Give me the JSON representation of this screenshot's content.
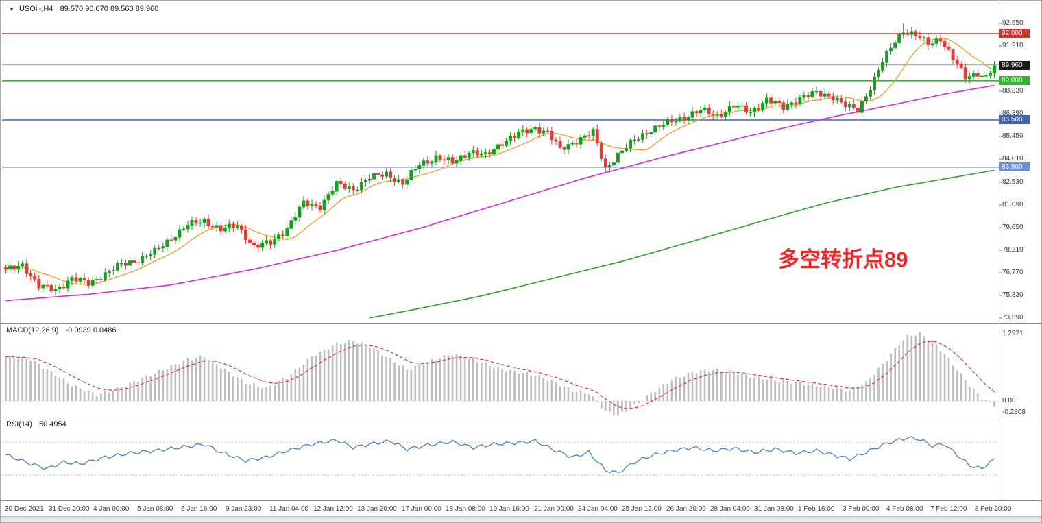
{
  "chart_data": {
    "type": "candlestick",
    "title": "USOil-,H4",
    "ohlc_text": "89.570 90.070 89.560 89.960",
    "current_close": 89.96,
    "annotation": "多空转折点89",
    "candle_count": 240,
    "colors": {
      "up": "#0fa317",
      "down": "#e03c3c",
      "ma_fast": "#f0a030",
      "ma_mid": "#d929d9",
      "ma_slow": "#2f9e2f",
      "macd_hist": "#bdbdbd",
      "macd_signal": "#d03636",
      "rsi_line": "#4a7ebb"
    },
    "close_anchors": [
      [
        0,
        76.9
      ],
      [
        4,
        77.3
      ],
      [
        8,
        75.9
      ],
      [
        12,
        75.7
      ],
      [
        16,
        76.4
      ],
      [
        20,
        76.1
      ],
      [
        24,
        76.7
      ],
      [
        28,
        77.3
      ],
      [
        32,
        77.6
      ],
      [
        36,
        78.1
      ],
      [
        40,
        79.0
      ],
      [
        44,
        79.8
      ],
      [
        48,
        80.1
      ],
      [
        52,
        79.5
      ],
      [
        56,
        79.8
      ],
      [
        60,
        78.4
      ],
      [
        64,
        78.7
      ],
      [
        68,
        79.6
      ],
      [
        72,
        81.2
      ],
      [
        76,
        81.0
      ],
      [
        80,
        82.4
      ],
      [
        84,
        82.1
      ],
      [
        88,
        82.8
      ],
      [
        92,
        83.1
      ],
      [
        96,
        82.4
      ],
      [
        100,
        83.7
      ],
      [
        104,
        84.1
      ],
      [
        108,
        83.8
      ],
      [
        112,
        84.5
      ],
      [
        116,
        84.2
      ],
      [
        120,
        85.1
      ],
      [
        124,
        85.6
      ],
      [
        128,
        86.0
      ],
      [
        131,
        85.7
      ],
      [
        134,
        84.6
      ],
      [
        138,
        85.2
      ],
      [
        142,
        85.7
      ],
      [
        145,
        83.4
      ],
      [
        148,
        84.3
      ],
      [
        152,
        85.2
      ],
      [
        156,
        85.9
      ],
      [
        160,
        86.3
      ],
      [
        164,
        86.7
      ],
      [
        168,
        87.1
      ],
      [
        172,
        86.8
      ],
      [
        176,
        87.4
      ],
      [
        180,
        87.0
      ],
      [
        184,
        87.8
      ],
      [
        188,
        87.3
      ],
      [
        192,
        87.9
      ],
      [
        196,
        88.2
      ],
      [
        200,
        88.0
      ],
      [
        203,
        87.4
      ],
      [
        206,
        87.1
      ],
      [
        209,
        88.6
      ],
      [
        212,
        90.2
      ],
      [
        215,
        91.5
      ],
      [
        217,
        92.2
      ],
      [
        220,
        91.9
      ],
      [
        223,
        91.3
      ],
      [
        226,
        91.7
      ],
      [
        229,
        90.4
      ],
      [
        232,
        89.2
      ],
      [
        235,
        89.5
      ],
      [
        237,
        89.2
      ],
      [
        239,
        89.96
      ]
    ],
    "peak": {
      "index": 217,
      "high": 92.65
    },
    "horizontal_lines": [
      {
        "price": 92.0,
        "color": "#cc3333",
        "width": 1.4
      },
      {
        "price": 90.0,
        "color": "#9a9a9a",
        "width": 1.0
      },
      {
        "price": 89.0,
        "color": "#2db82d",
        "width": 1.8
      },
      {
        "price": 86.5,
        "color": "#3f63b5",
        "width": 1.5
      },
      {
        "price": 83.5,
        "color": "#5f7fd0",
        "width": 1.5
      }
    ],
    "price_axis": {
      "ticks": [
        "92.650",
        "91.210",
        "89.770",
        "88.330",
        "86.890",
        "85.450",
        "84.010",
        "82.530",
        "81.090",
        "79.650",
        "78.210",
        "76.770",
        "75.330",
        "73.890"
      ],
      "badges": [
        {
          "label": "92.000",
          "price": 92.0,
          "bg": "#cc3333"
        },
        {
          "label": "89.960",
          "price": 89.96,
          "bg": "#1a1a1a"
        },
        {
          "label": "89.000",
          "price": 89.0,
          "bg": "#2eb82e"
        },
        {
          "label": "86.500",
          "price": 86.5,
          "bg": "#3f63b5"
        },
        {
          "label": "83.500",
          "price": 83.5,
          "bg": "#6d8ed9"
        }
      ]
    },
    "moving_averages": {
      "fast": {
        "window": 12
      },
      "mid_anchors": [
        [
          0,
          75.0
        ],
        [
          20,
          75.4
        ],
        [
          40,
          76.0
        ],
        [
          60,
          77.0
        ],
        [
          80,
          78.2
        ],
        [
          100,
          79.6
        ],
        [
          120,
          81.2
        ],
        [
          140,
          82.8
        ],
        [
          160,
          84.2
        ],
        [
          180,
          85.5
        ],
        [
          200,
          86.7
        ],
        [
          215,
          87.5
        ],
        [
          228,
          88.2
        ],
        [
          239,
          88.7
        ]
      ],
      "slow_anchors": [
        [
          88,
          73.9
        ],
        [
          100,
          74.5
        ],
        [
          115,
          75.3
        ],
        [
          132,
          76.4
        ],
        [
          149,
          77.5
        ],
        [
          165,
          78.7
        ],
        [
          182,
          80.0
        ],
        [
          198,
          81.2
        ],
        [
          215,
          82.2
        ],
        [
          239,
          83.3
        ]
      ]
    },
    "macd": {
      "name": "MACD(12,26,9)",
      "values_text": "-0.0939 0.0486",
      "axis_labels": [
        {
          "text": "1.2921",
          "value": 1.2921
        },
        {
          "text": "0.00",
          "value": 0
        },
        {
          "text": "-0.2808",
          "value": -0.2808
        }
      ],
      "hist_anchors": [
        [
          0,
          0.85
        ],
        [
          6,
          0.8
        ],
        [
          10,
          0.6
        ],
        [
          16,
          0.3
        ],
        [
          22,
          0.12
        ],
        [
          26,
          0.2
        ],
        [
          32,
          0.4
        ],
        [
          38,
          0.6
        ],
        [
          44,
          0.8
        ],
        [
          48,
          0.85
        ],
        [
          52,
          0.65
        ],
        [
          58,
          0.35
        ],
        [
          63,
          0.25
        ],
        [
          68,
          0.45
        ],
        [
          74,
          0.85
        ],
        [
          80,
          1.1
        ],
        [
          84,
          1.15
        ],
        [
          88,
          1.05
        ],
        [
          93,
          0.8
        ],
        [
          97,
          0.6
        ],
        [
          102,
          0.75
        ],
        [
          108,
          0.9
        ],
        [
          113,
          0.8
        ],
        [
          118,
          0.65
        ],
        [
          124,
          0.55
        ],
        [
          128,
          0.5
        ],
        [
          133,
          0.35
        ],
        [
          137,
          0.2
        ],
        [
          141,
          0.15
        ],
        [
          145,
          -0.2
        ],
        [
          148,
          -0.28
        ],
        [
          152,
          -0.1
        ],
        [
          156,
          0.15
        ],
        [
          161,
          0.4
        ],
        [
          166,
          0.55
        ],
        [
          171,
          0.6
        ],
        [
          176,
          0.55
        ],
        [
          181,
          0.45
        ],
        [
          186,
          0.4
        ],
        [
          191,
          0.35
        ],
        [
          196,
          0.3
        ],
        [
          200,
          0.25
        ],
        [
          204,
          0.2
        ],
        [
          208,
          0.35
        ],
        [
          212,
          0.7
        ],
        [
          215,
          1.0
        ],
        [
          218,
          1.25
        ],
        [
          221,
          1.29
        ],
        [
          224,
          1.15
        ],
        [
          227,
          0.9
        ],
        [
          230,
          0.6
        ],
        [
          233,
          0.3
        ],
        [
          236,
          0.05
        ],
        [
          239,
          -0.09
        ]
      ]
    },
    "rsi": {
      "name": "RSI(14)",
      "value_text": "50.4954",
      "final_value": 50.4954,
      "levels": [
        70,
        30
      ],
      "anchors": [
        [
          0,
          55
        ],
        [
          6,
          44
        ],
        [
          10,
          38
        ],
        [
          14,
          46
        ],
        [
          18,
          44
        ],
        [
          24,
          52
        ],
        [
          30,
          57
        ],
        [
          36,
          60
        ],
        [
          42,
          64
        ],
        [
          48,
          68
        ],
        [
          52,
          58
        ],
        [
          58,
          48
        ],
        [
          63,
          52
        ],
        [
          68,
          60
        ],
        [
          74,
          68
        ],
        [
          80,
          73
        ],
        [
          84,
          64
        ],
        [
          88,
          68
        ],
        [
          93,
          72
        ],
        [
          97,
          62
        ],
        [
          102,
          67
        ],
        [
          108,
          71
        ],
        [
          113,
          64
        ],
        [
          118,
          68
        ],
        [
          124,
          70
        ],
        [
          128,
          72
        ],
        [
          133,
          60
        ],
        [
          137,
          52
        ],
        [
          141,
          58
        ],
        [
          145,
          36
        ],
        [
          148,
          33
        ],
        [
          152,
          46
        ],
        [
          156,
          54
        ],
        [
          161,
          60
        ],
        [
          166,
          64
        ],
        [
          171,
          60
        ],
        [
          176,
          63
        ],
        [
          181,
          58
        ],
        [
          186,
          62
        ],
        [
          191,
          57
        ],
        [
          196,
          60
        ],
        [
          200,
          55
        ],
        [
          204,
          50
        ],
        [
          208,
          58
        ],
        [
          212,
          67
        ],
        [
          215,
          72
        ],
        [
          218,
          76
        ],
        [
          221,
          74
        ],
        [
          224,
          66
        ],
        [
          227,
          68
        ],
        [
          230,
          55
        ],
        [
          233,
          42
        ],
        [
          236,
          38
        ],
        [
          238,
          46
        ],
        [
          239,
          50.5
        ]
      ]
    },
    "time_axis": {
      "labels": [
        "30 Dec 2021",
        "31 Dec 20:00",
        "4 Jan 00:00",
        "5 Jan 08:00",
        "6 Jan 16:00",
        "9 Jan 23:00",
        "11 Jan 04:00",
        "12 Jan 12:00",
        "13 Jan 20:00",
        "17 Jan 00:00",
        "18 Jan 08:00",
        "19 Jan 16:00",
        "21 Jan 00:00",
        "24 Jan 04:00",
        "25 Jan 12:00",
        "26 Jan 20:00",
        "28 Jan 04:00",
        "31 Jan 08:00",
        "1 Feb 16:00",
        "3 Feb 00:00",
        "4 Feb 08:00",
        "7 Feb 12:00",
        "8 Feb 20:00"
      ]
    }
  }
}
